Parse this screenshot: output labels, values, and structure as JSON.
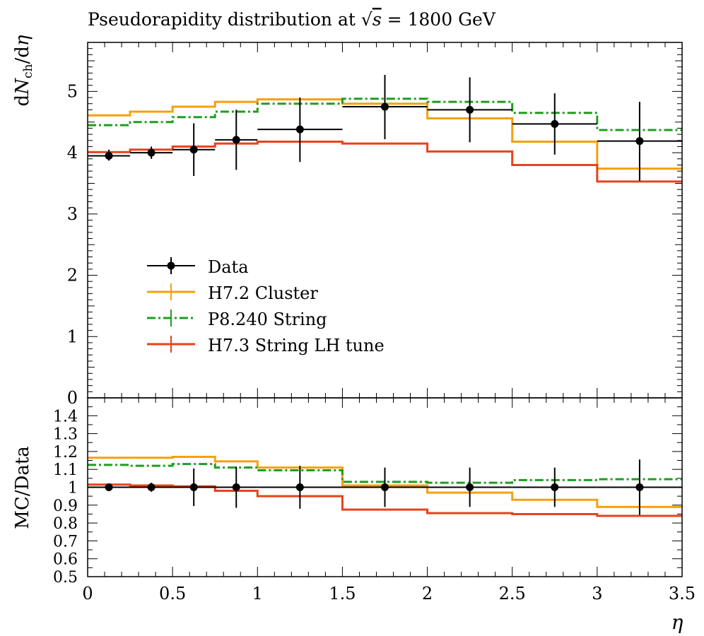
{
  "chart_data": [
    {
      "type": "line",
      "title": "Pseudorapidity distribution at √s = 1800 GeV",
      "title_parts": {
        "prefix": "Pseudorapidity distribution at ",
        "sqrt_symbol": "√",
        "sqrt_arg": "s",
        "suffix": " = 1800 GeV"
      },
      "ylabel_parts": {
        "d1": "d",
        "N": "N",
        "sub": "ch",
        "slash": "/d",
        "eta": "η"
      },
      "xlim": [
        0,
        3.5
      ],
      "ylim": [
        0,
        5.8
      ],
      "y_ticks": [
        0,
        1,
        2,
        3,
        4,
        5
      ],
      "y_tick_labels": [
        "0",
        "1",
        "2",
        "3",
        "4",
        "5"
      ],
      "grid": false,
      "legend_position": "lower-left",
      "series": [
        {
          "name": "Data",
          "color": "#000000",
          "style": "points",
          "points": [
            {
              "x": 0.125,
              "xerr": 0.125,
              "y": 3.95,
              "ylo": 3.87,
              "yhi": 4.05
            },
            {
              "x": 0.375,
              "xerr": 0.125,
              "y": 4.0,
              "ylo": 3.9,
              "yhi": 4.1
            },
            {
              "x": 0.625,
              "xerr": 0.125,
              "y": 4.05,
              "ylo": 3.62,
              "yhi": 4.48
            },
            {
              "x": 0.875,
              "xerr": 0.125,
              "y": 4.21,
              "ylo": 3.72,
              "yhi": 4.7
            },
            {
              "x": 1.25,
              "xerr": 0.25,
              "y": 4.38,
              "ylo": 3.85,
              "yhi": 4.9
            },
            {
              "x": 1.75,
              "xerr": 0.25,
              "y": 4.75,
              "ylo": 4.22,
              "yhi": 5.27
            },
            {
              "x": 2.25,
              "xerr": 0.25,
              "y": 4.7,
              "ylo": 4.17,
              "yhi": 5.23
            },
            {
              "x": 2.75,
              "xerr": 0.25,
              "y": 4.47,
              "ylo": 3.97,
              "yhi": 4.97
            },
            {
              "x": 3.25,
              "xerr": 0.25,
              "y": 4.19,
              "ylo": 3.54,
              "yhi": 4.83
            }
          ]
        },
        {
          "name": "H7.2 Cluster",
          "color": "#f5a00f",
          "style": "solid",
          "edges": [
            0,
            0.25,
            0.5,
            0.75,
            1.0,
            1.5,
            2.0,
            2.5,
            3.0,
            3.5
          ],
          "values": [
            4.61,
            4.67,
            4.75,
            4.83,
            4.87,
            4.8,
            4.56,
            4.18,
            3.74
          ]
        },
        {
          "name": "P8.240 String",
          "color": "#1f9d1f",
          "style": "dashdot",
          "edges": [
            0,
            0.25,
            0.5,
            0.75,
            1.0,
            1.5,
            2.0,
            2.5,
            3.0,
            3.5
          ],
          "values": [
            4.45,
            4.5,
            4.58,
            4.67,
            4.8,
            4.88,
            4.83,
            4.65,
            4.37
          ]
        },
        {
          "name": "H7.3 String LH tune",
          "color": "#e8421c",
          "style": "solid",
          "edges": [
            0,
            0.25,
            0.5,
            0.75,
            1.0,
            1.5,
            2.0,
            2.5,
            3.0,
            3.5
          ],
          "values": [
            4.01,
            4.05,
            4.1,
            4.15,
            4.18,
            4.15,
            4.02,
            3.8,
            3.53
          ]
        }
      ]
    },
    {
      "type": "line",
      "ylabel": "MC/Data",
      "xlabel": "η",
      "xlim": [
        0,
        3.5
      ],
      "ylim": [
        0.5,
        1.5
      ],
      "x_ticks": [
        0,
        0.5,
        1,
        1.5,
        2,
        2.5,
        3,
        3.5
      ],
      "x_tick_labels": [
        "0",
        "0.5",
        "1",
        "1.5",
        "2",
        "2.5",
        "3",
        "3.5"
      ],
      "y_ticks": [
        0.5,
        0.6,
        0.7,
        0.8,
        0.9,
        1.0,
        1.1,
        1.2,
        1.3,
        1.4
      ],
      "y_tick_labels": [
        "0.5",
        "0.6",
        "0.7",
        "0.8",
        "0.9",
        "1",
        "1.1",
        "1.2",
        "1.3",
        "1.4"
      ],
      "grid": false,
      "series": [
        {
          "name": "Data",
          "color": "#000000",
          "style": "points",
          "points": [
            {
              "x": 0.125,
              "xerr": 0.125,
              "y": 1.0,
              "ylo": 0.98,
              "yhi": 1.02
            },
            {
              "x": 0.375,
              "xerr": 0.125,
              "y": 1.0,
              "ylo": 0.975,
              "yhi": 1.025
            },
            {
              "x": 0.625,
              "xerr": 0.125,
              "y": 1.0,
              "ylo": 0.895,
              "yhi": 1.105
            },
            {
              "x": 0.875,
              "xerr": 0.125,
              "y": 1.0,
              "ylo": 0.885,
              "yhi": 1.115
            },
            {
              "x": 1.25,
              "xerr": 0.25,
              "y": 1.0,
              "ylo": 0.88,
              "yhi": 1.12
            },
            {
              "x": 1.75,
              "xerr": 0.25,
              "y": 1.0,
              "ylo": 0.89,
              "yhi": 1.11
            },
            {
              "x": 2.25,
              "xerr": 0.25,
              "y": 1.0,
              "ylo": 0.89,
              "yhi": 1.11
            },
            {
              "x": 2.75,
              "xerr": 0.25,
              "y": 1.0,
              "ylo": 0.89,
              "yhi": 1.11
            },
            {
              "x": 3.25,
              "xerr": 0.25,
              "y": 1.0,
              "ylo": 0.845,
              "yhi": 1.155
            }
          ]
        },
        {
          "name": "H7.2 Cluster",
          "color": "#f5a00f",
          "style": "solid",
          "edges": [
            0,
            0.25,
            0.5,
            0.75,
            1.0,
            1.5,
            2.0,
            2.5,
            3.0,
            3.5
          ],
          "values": [
            1.165,
            1.165,
            1.17,
            1.145,
            1.11,
            1.01,
            0.97,
            0.93,
            0.89
          ]
        },
        {
          "name": "P8.240 String",
          "color": "#1f9d1f",
          "style": "dashdot",
          "edges": [
            0,
            0.25,
            0.5,
            0.75,
            1.0,
            1.5,
            2.0,
            2.5,
            3.0,
            3.5
          ],
          "values": [
            1.125,
            1.12,
            1.13,
            1.11,
            1.095,
            1.03,
            1.025,
            1.04,
            1.045
          ]
        },
        {
          "name": "H7.3 String LH tune",
          "color": "#e8421c",
          "style": "solid",
          "edges": [
            0,
            0.25,
            0.5,
            0.75,
            1.0,
            1.5,
            2.0,
            2.5,
            3.0,
            3.5
          ],
          "values": [
            1.015,
            1.01,
            1.005,
            0.98,
            0.95,
            0.875,
            0.855,
            0.85,
            0.84
          ]
        }
      ]
    }
  ]
}
